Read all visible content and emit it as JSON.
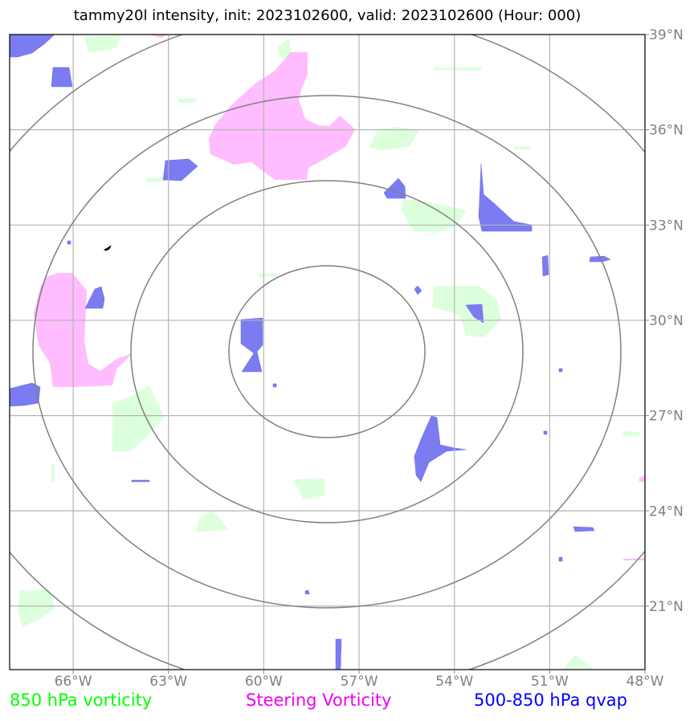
{
  "title": "tammy20l intensity, init: 2023102600, valid: 2023102600 (Hour: 000)",
  "map": {
    "lon_range": [
      -68,
      -48
    ],
    "lat_range": [
      19,
      39
    ],
    "center": {
      "lon": -57.9,
      "lat": 29.2
    },
    "x_ticks": [
      {
        "lon": -66,
        "label": "66°W"
      },
      {
        "lon": -63,
        "label": "63°W"
      },
      {
        "lon": -60,
        "label": "60°W"
      },
      {
        "lon": -57,
        "label": "57°W"
      },
      {
        "lon": -54,
        "label": "54°W"
      },
      {
        "lon": -51,
        "label": "51°W"
      },
      {
        "lon": -48,
        "label": "48°W"
      }
    ],
    "y_ticks": [
      {
        "lat": 39,
        "label": "39°N"
      },
      {
        "lat": 36,
        "label": "36°N"
      },
      {
        "lat": 33,
        "label": "33°N"
      },
      {
        "lat": 30,
        "label": "30°N"
      },
      {
        "lat": 27,
        "label": "27°N"
      },
      {
        "lat": 24,
        "label": "24°N"
      },
      {
        "lat": 21,
        "label": "21°N"
      }
    ],
    "range_rings": 4,
    "grid": true
  },
  "legend": {
    "vorticity_850": {
      "label": "850 hPa vorticity",
      "color": "#00ff00"
    },
    "steering_vorticity": {
      "label": "Steering Vorticity",
      "color": "#ee00ee"
    },
    "qvap": {
      "label": "500-850 hPa qvap",
      "color": "#0000ff"
    }
  },
  "colors": {
    "green_fill": "#dcffdc",
    "magenta_fill": "#ffbcff",
    "blue_fill": "#7b7bf2",
    "ring": "#808080",
    "grid": "#b4b4b4"
  }
}
